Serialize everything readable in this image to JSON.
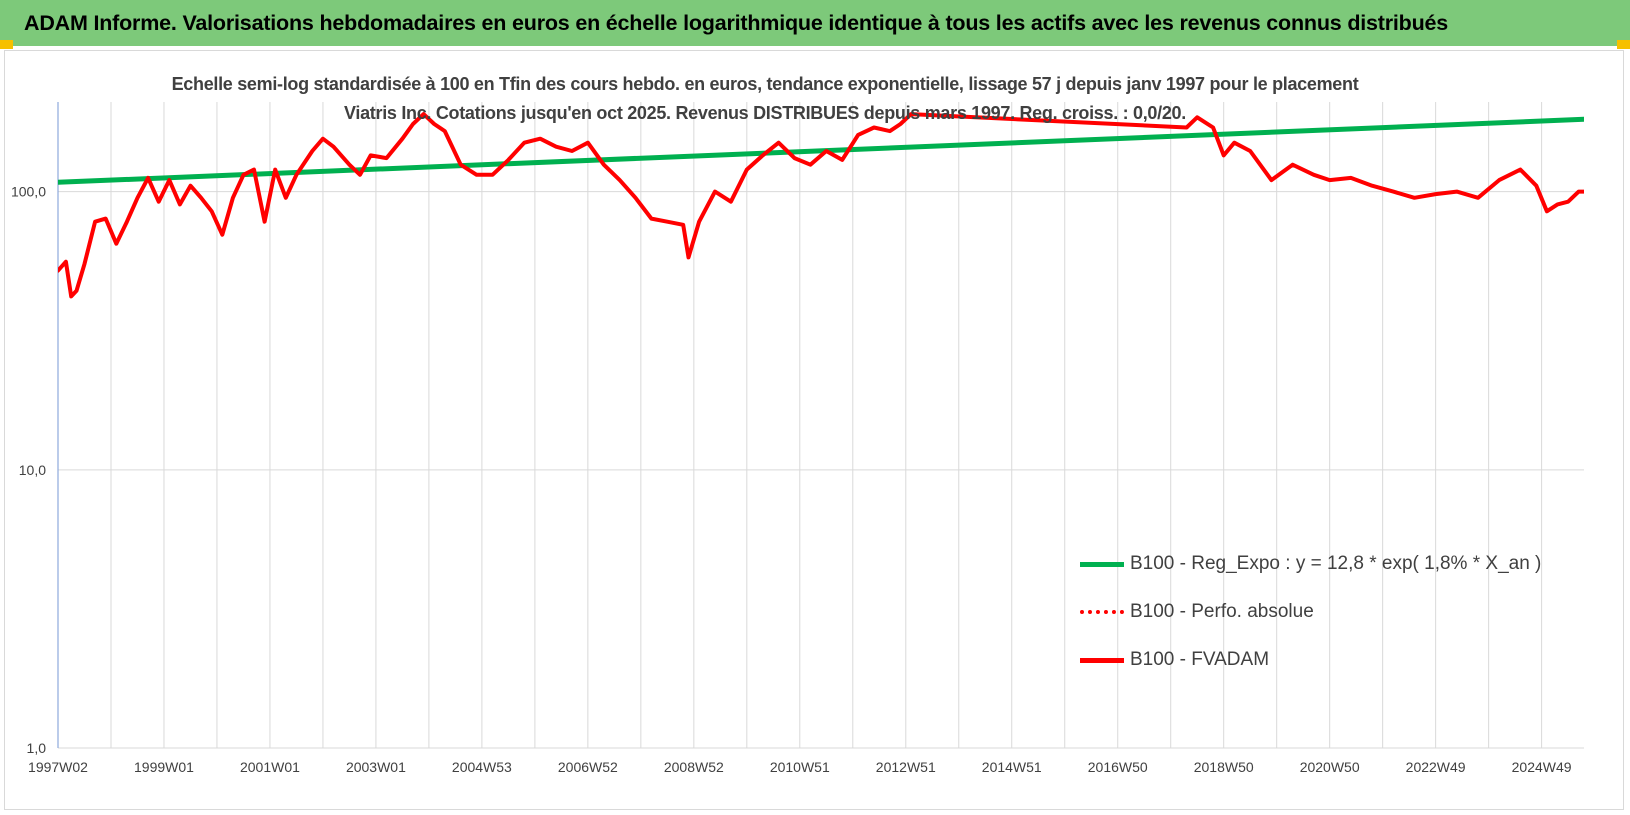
{
  "header": {
    "title": "ADAM Informe. Valorisations hebdomadaires en euros en échelle logarithmique identique à tous les actifs avec les revenus connus distribués"
  },
  "chart_data": {
    "type": "line",
    "title": "Echelle semi-log standardisée à 100 en Tfin des cours hebdo. en euros, tendance exponentielle, lissage 57 j depuis janv 1997 pour le placement Viatris Inc. Cotations jusqu'en oct 2025. Revenus DISTRIBUES depuis mars 1997. Reg. croiss. : 0,0/20.",
    "y_scale": "log",
    "ylim": [
      1,
      200
    ],
    "xlim": [
      1997.0,
      2025.8
    ],
    "y_ticks": [
      {
        "value": 1,
        "label": "1,0"
      },
      {
        "value": 10,
        "label": "10,0"
      },
      {
        "value": 100,
        "label": "100,0"
      }
    ],
    "x_tick_labels": [
      "1997W02",
      "1999W01",
      "2001W01",
      "2003W01",
      "2004W53",
      "2006W52",
      "2008W52",
      "2010W51",
      "2012W51",
      "2014W51",
      "2016W50",
      "2018W50",
      "2020W50",
      "2022W49",
      "2024W49"
    ],
    "x_tick_years": [
      1997.0,
      1999.0,
      2001.0,
      2003.0,
      2005.0,
      2007.0,
      2009.0,
      2011.0,
      2013.0,
      2015.0,
      2017.0,
      2019.0,
      2021.0,
      2023.0,
      2025.0
    ],
    "grid": true,
    "legend_position": "bottom-right",
    "series": [
      {
        "name": "B100 - Reg_Expo : y = 12,8 * exp( 1,8% *  X_an )",
        "color": "#00b050",
        "style": "solid",
        "x": [
          1997.0,
          2025.8
        ],
        "y": [
          108,
          182
        ]
      },
      {
        "name": "B100 - Perfo. absolue",
        "color": "#ff0000",
        "style": "dotted",
        "x": [],
        "y": []
      },
      {
        "name": "B100 - FVADAM",
        "color": "#ff0000",
        "style": "solid",
        "x": [
          1997.0,
          1997.15,
          1997.25,
          1997.35,
          1997.5,
          1997.7,
          1997.9,
          1998.1,
          1998.3,
          1998.5,
          1998.7,
          1998.9,
          1999.1,
          1999.3,
          1999.5,
          1999.7,
          1999.9,
          2000.1,
          2000.3,
          2000.5,
          2000.7,
          2000.9,
          2001.1,
          2001.3,
          2001.5,
          2001.8,
          2002.0,
          2002.2,
          2002.5,
          2002.7,
          2002.9,
          2003.2,
          2003.5,
          2003.7,
          2003.9,
          2004.1,
          2004.3,
          2004.6,
          2004.9,
          2005.2,
          2005.5,
          2005.8,
          2006.1,
          2006.4,
          2006.7,
          2007.0,
          2007.3,
          2007.6,
          2007.9,
          2008.2,
          2008.5,
          2008.8,
          2008.9,
          2009.1,
          2009.4,
          2009.7,
          2010.0,
          2010.3,
          2010.6,
          2010.9,
          2011.2,
          2011.5,
          2011.8,
          2012.1,
          2012.4,
          2012.7,
          2012.9,
          2013.1,
          2018.3,
          2018.5,
          2018.8,
          2019.0,
          2019.2,
          2019.5,
          2019.9,
          2020.3,
          2020.7,
          2021.0,
          2021.4,
          2021.8,
          2022.2,
          2022.6,
          2023.0,
          2023.4,
          2023.8,
          2024.2,
          2024.6,
          2024.9,
          2025.1,
          2025.3,
          2025.5,
          2025.7,
          2025.8
        ],
        "y": [
          52,
          56,
          42,
          44,
          55,
          78,
          80,
          65,
          78,
          95,
          112,
          92,
          110,
          90,
          105,
          95,
          85,
          70,
          95,
          115,
          120,
          78,
          120,
          95,
          115,
          140,
          155,
          145,
          125,
          115,
          135,
          132,
          155,
          175,
          190,
          175,
          165,
          125,
          115,
          115,
          130,
          150,
          155,
          145,
          140,
          150,
          125,
          110,
          95,
          80,
          78,
          76,
          58,
          78,
          100,
          92,
          120,
          135,
          150,
          132,
          125,
          140,
          130,
          160,
          170,
          165,
          175,
          190,
          170,
          185,
          170,
          135,
          150,
          140,
          110,
          125,
          115,
          110,
          112,
          105,
          100,
          95,
          98,
          100,
          95,
          110,
          120,
          105,
          85,
          90,
          92,
          100,
          100
        ]
      }
    ]
  }
}
